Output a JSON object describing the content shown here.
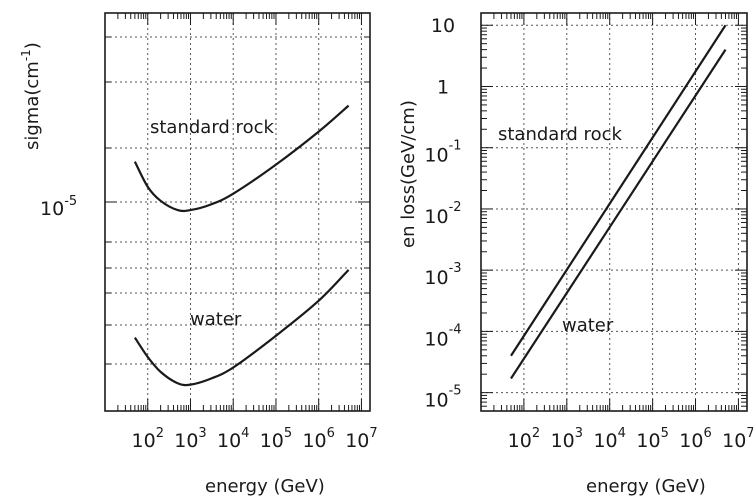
{
  "chart_data": [
    {
      "type": "line",
      "xlabel": "energy (GeV)",
      "ylabel_main": "sigma(cm",
      "ylabel_sup": "-1",
      "ylabel_close": ")",
      "xscale": "log",
      "yscale": "log",
      "xlim": [
        10,
        10000000
      ],
      "grid": true,
      "xticks": [
        {
          "base": "10",
          "exp": "2"
        },
        {
          "base": "10",
          "exp": "3"
        },
        {
          "base": "10",
          "exp": "4"
        },
        {
          "base": "10",
          "exp": "5"
        },
        {
          "base": "10",
          "exp": "6"
        },
        {
          "base": "10",
          "exp": "7"
        }
      ],
      "ytick": {
        "base": "10",
        "exp": "-5"
      },
      "series": [
        {
          "name": "standard rock",
          "x": [
            50,
            100,
            200,
            500,
            1000,
            3000,
            10000,
            100000,
            1000000,
            5000000
          ],
          "y": [
            1.3e-05,
            1.14e-05,
            1.06e-05,
            1.01e-05,
            1.01e-05,
            1.04e-05,
            1.1e-05,
            1.28e-05,
            1.52e-05,
            1.74e-05
          ]
        },
        {
          "name": "water",
          "x": [
            50,
            100,
            200,
            500,
            1000,
            3000,
            10000,
            100000,
            1000000,
            5000000
          ],
          "y": [
            5.2e-06,
            4.7e-06,
            4.35e-06,
            4.1e-06,
            4.07e-06,
            4.2e-06,
            4.45e-06,
            5.25e-06,
            6.3e-06,
            7.4e-06
          ]
        }
      ],
      "labels": {
        "rock": "standard rock",
        "water": "water"
      }
    },
    {
      "type": "line",
      "xlabel": "energy (GeV)",
      "ylabel": "en loss(GeV/cm)",
      "xscale": "log",
      "yscale": "log",
      "xlim": [
        10,
        10000000
      ],
      "ylim": [
        1e-05,
        10
      ],
      "grid": true,
      "xticks": [
        {
          "base": "10",
          "exp": "2"
        },
        {
          "base": "10",
          "exp": "3"
        },
        {
          "base": "10",
          "exp": "4"
        },
        {
          "base": "10",
          "exp": "5"
        },
        {
          "base": "10",
          "exp": "6"
        },
        {
          "base": "10",
          "exp": "7"
        }
      ],
      "yticks": [
        {
          "base": "10",
          "exp": "-5"
        },
        {
          "base": "10",
          "exp": "-4"
        },
        {
          "base": "10",
          "exp": "-3"
        },
        {
          "base": "10",
          "exp": "-2"
        },
        {
          "base": "10",
          "exp": "-1"
        },
        {
          "base": "1",
          "exp": ""
        },
        {
          "base": "10",
          "exp": ""
        }
      ],
      "series": [
        {
          "name": "standard rock",
          "x": [
            50,
            5000000
          ],
          "y": [
            4e-05,
            10
          ]
        },
        {
          "name": "water",
          "x": [
            50,
            5000000
          ],
          "y": [
            1.7e-05,
            4
          ]
        }
      ],
      "labels": {
        "rock": "standard rock",
        "water": "water"
      }
    }
  ]
}
